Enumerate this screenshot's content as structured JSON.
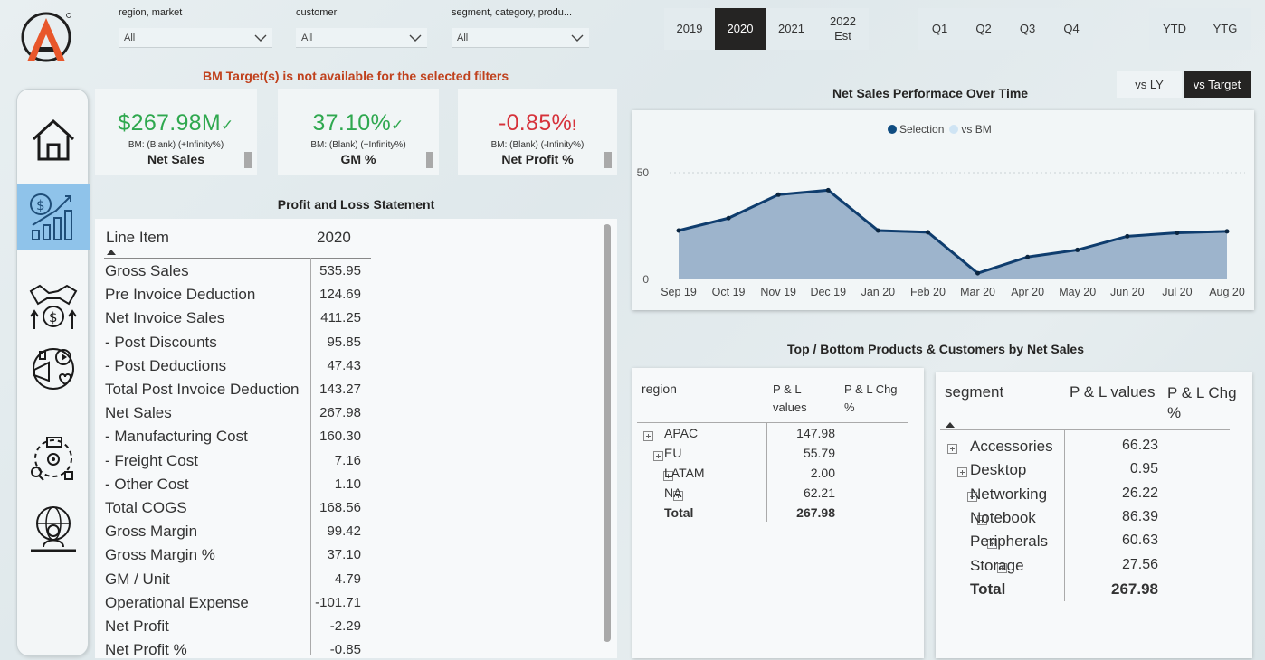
{
  "filters": {
    "region": {
      "label": "region, market",
      "value": "All"
    },
    "customer": {
      "label": "customer",
      "value": "All"
    },
    "segment": {
      "label": "segment, category, produ...",
      "value": "All"
    }
  },
  "years": [
    {
      "label": "2019"
    },
    {
      "label": "2020",
      "selected": true
    },
    {
      "label": "2021"
    },
    {
      "label": "2022\nEst"
    }
  ],
  "quarters": [
    "Q1",
    "Q2",
    "Q3",
    "Q4"
  ],
  "period_buttons": [
    "YTD",
    "YTG"
  ],
  "warning": "BM Target(s) is not available for the selected filters",
  "compare_toggle": {
    "vs_ly": "vs LY",
    "vs_target": "vs Target"
  },
  "sidebar": {
    "items": [
      "home-icon",
      "finance-view-icon",
      "sales-view-icon",
      "marketing-view-icon",
      "supply-chain-icon",
      "executive-view-icon"
    ],
    "active": 1
  },
  "kpis": [
    {
      "value": "$267.98M",
      "status": "✓",
      "bm": "BM: (Blank) (+Infinity%)",
      "name": "Net Sales",
      "color": "#2fa84f"
    },
    {
      "value": "37.10%",
      "status": "✓",
      "bm": "BM: (Blank) (+Infinity%)",
      "name": "GM %",
      "color": "#2fa84f"
    },
    {
      "value": "-0.85%",
      "status": "!",
      "bm": "BM: (Blank) (-Infinity%)",
      "name": "Net Profit %",
      "color": "#d6323b"
    }
  ],
  "pl": {
    "title": "Profit and Loss Statement",
    "col_item": "Line Item",
    "col_year": "2020",
    "rows": [
      {
        "label": "Gross Sales",
        "value": "535.95"
      },
      {
        "label": "Pre Invoice Deduction",
        "value": "124.69"
      },
      {
        "label": "Net Invoice Sales",
        "value": "411.25"
      },
      {
        "label": " - Post Discounts",
        "value": "95.85"
      },
      {
        "label": " - Post Deductions",
        "value": "47.43"
      },
      {
        "label": "Total Post Invoice Deduction",
        "value": "143.27"
      },
      {
        "label": "Net Sales",
        "value": "267.98"
      },
      {
        "label": " - Manufacturing Cost",
        "value": "160.30"
      },
      {
        "label": " - Freight Cost",
        "value": "7.16"
      },
      {
        "label": " - Other Cost",
        "value": "1.10"
      },
      {
        "label": "Total COGS",
        "value": "168.56"
      },
      {
        "label": "Gross Margin",
        "value": "99.42"
      },
      {
        "label": "Gross Margin %",
        "value": "37.10"
      },
      {
        "label": "GM / Unit",
        "value": "4.79"
      },
      {
        "label": "Operational Expense",
        "value": "-101.71"
      },
      {
        "label": "Net Profit",
        "value": "-2.29"
      },
      {
        "label": "Net Profit %",
        "value": "-0.85"
      }
    ]
  },
  "chart": {
    "title": "Net Sales Performace Over Time",
    "legend": [
      "Selection",
      "vs BM"
    ],
    "legend_colors": [
      "#0f4c81",
      "#cfe4f4"
    ]
  },
  "chart_data": {
    "type": "area",
    "x": [
      "Sep 19",
      "Oct 19",
      "Nov 19",
      "Dec 19",
      "Jan 20",
      "Feb 20",
      "Mar 20",
      "Apr 20",
      "May 20",
      "Jun 20",
      "Jul 20",
      "Aug 20"
    ],
    "series": [
      {
        "name": "Selection",
        "values": [
          22.9,
          28.7,
          39.7,
          41.8,
          22.9,
          22.1,
          2.9,
          10.5,
          13.8,
          20.2,
          21.8,
          22.5
        ]
      }
    ],
    "yticks": [
      0,
      50
    ],
    "ylim": [
      0,
      50
    ],
    "grid": true,
    "legend_position": "top"
  },
  "top_bottom_title": "Top / Bottom Products & Customers by Net Sales",
  "region_table": {
    "headers": [
      "region",
      "P & L\nvalues",
      "P & L Chg\n%"
    ],
    "rows": [
      {
        "name": "APAC",
        "value": "147.98"
      },
      {
        "name": "EU",
        "value": "55.79"
      },
      {
        "name": "LATAM",
        "value": "2.00"
      },
      {
        "name": "NA",
        "value": "62.21"
      }
    ],
    "total": {
      "name": "Total",
      "value": "267.98"
    }
  },
  "segment_table": {
    "headers": [
      "segment",
      "P & L values",
      "P & L Chg\n%"
    ],
    "rows": [
      {
        "name": "Accessories",
        "value": "66.23"
      },
      {
        "name": "Desktop",
        "value": "0.95"
      },
      {
        "name": "Networking",
        "value": "26.22"
      },
      {
        "name": "Notebook",
        "value": "86.39"
      },
      {
        "name": "Peripherals",
        "value": "60.63"
      },
      {
        "name": "Storage",
        "value": "27.56"
      }
    ],
    "total": {
      "name": "Total",
      "value": "267.98"
    }
  }
}
